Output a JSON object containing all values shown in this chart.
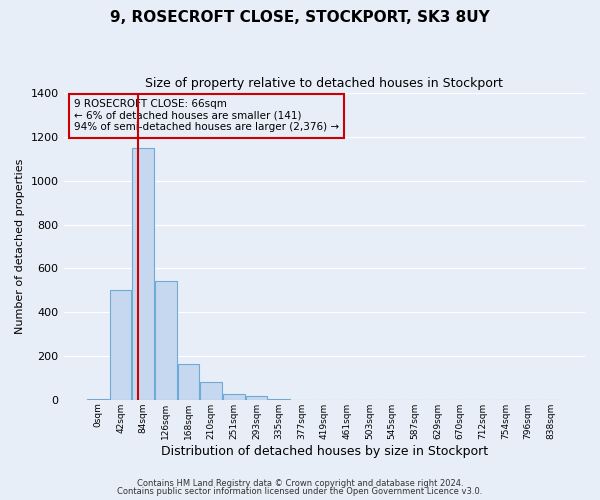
{
  "title": "9, ROSECROFT CLOSE, STOCKPORT, SK3 8UY",
  "subtitle": "Size of property relative to detached houses in Stockport",
  "xlabel": "Distribution of detached houses by size in Stockport",
  "ylabel": "Number of detached properties",
  "bar_labels": [
    "0sqm",
    "42sqm",
    "84sqm",
    "126sqm",
    "168sqm",
    "210sqm",
    "251sqm",
    "293sqm",
    "335sqm",
    "377sqm",
    "419sqm",
    "461sqm",
    "503sqm",
    "545sqm",
    "587sqm",
    "629sqm",
    "670sqm",
    "712sqm",
    "754sqm",
    "796sqm",
    "838sqm"
  ],
  "bar_values": [
    5,
    500,
    1150,
    540,
    165,
    83,
    28,
    18,
    5,
    0,
    0,
    0,
    0,
    0,
    0,
    0,
    0,
    0,
    0,
    0,
    0
  ],
  "bar_color": "#c5d8f0",
  "bar_edge_color": "#6eaad4",
  "marker_color": "#cc0000",
  "annotation_title": "9 ROSECROFT CLOSE: 66sqm",
  "annotation_line1": "← 6% of detached houses are smaller (141)",
  "annotation_line2": "94% of semi-detached houses are larger (2,376) →",
  "annotation_box_edge": "#cc0000",
  "ylim": [
    0,
    1400
  ],
  "yticks": [
    0,
    200,
    400,
    600,
    800,
    1000,
    1200,
    1400
  ],
  "footer1": "Contains HM Land Registry data © Crown copyright and database right 2024.",
  "footer2": "Contains public sector information licensed under the Open Government Licence v3.0.",
  "bg_color": "#e8eef8",
  "grid_color": "#ffffff"
}
